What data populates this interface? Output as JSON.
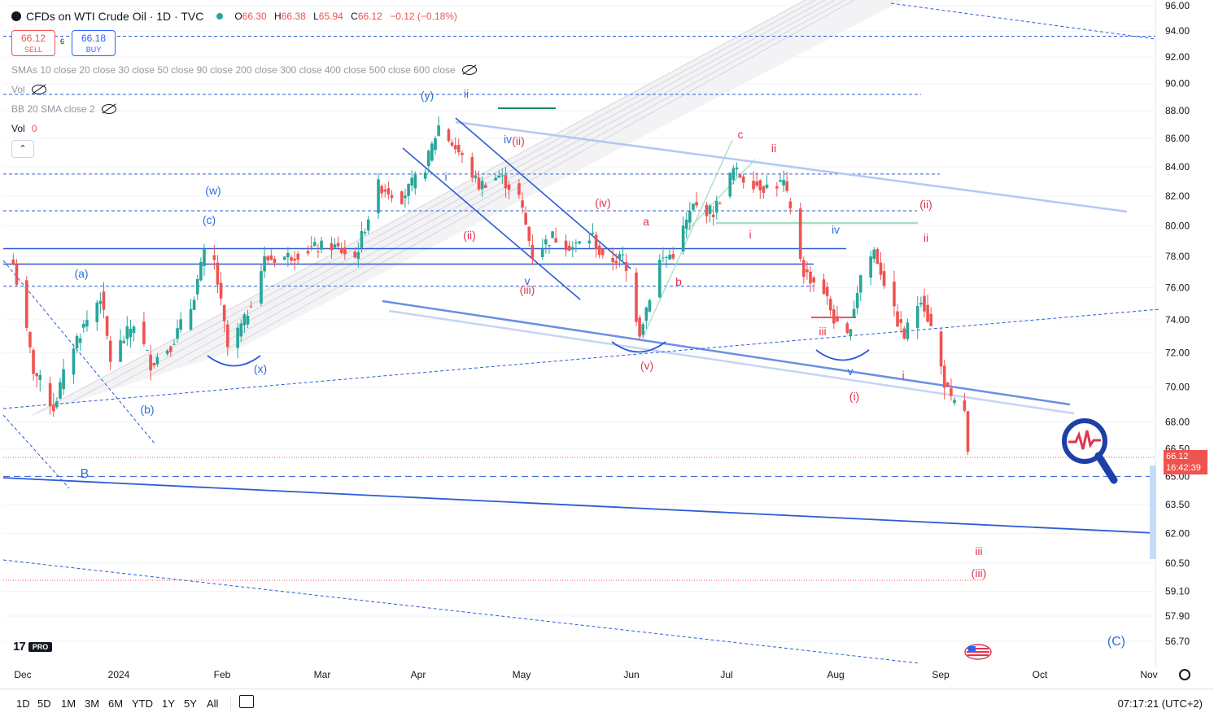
{
  "header": {
    "symbol_title": "CFDs on WTI Crude Oil · 1D · TVC",
    "ohlc": {
      "o_label": "O",
      "o": "66.30",
      "h_label": "H",
      "h": "66.38",
      "l_label": "L",
      "l": "65.94",
      "c_label": "C",
      "c": "66.12",
      "change": "−0.12 (−0.18%)"
    }
  },
  "trade": {
    "sell_price": "66.12",
    "sell_label": "SELL",
    "spread": "6",
    "buy_price": "66.18",
    "buy_label": "BUY"
  },
  "indicators": {
    "smas": "SMAs 10 close 20 close 30 close 50 close 90 close 200 close 300 close 400 close 500 close 600 close",
    "vol_hidden": "Vol",
    "bb": "BB 20 SMA close 2",
    "vol": "Vol",
    "vol_value": "0"
  },
  "logo": {
    "text": "17",
    "badge": "PRO"
  },
  "price_label": {
    "price": "66.12",
    "countdown": "16:42:39"
  },
  "toolbar": {
    "timeframes": [
      "1D",
      "5D",
      "1M",
      "3M",
      "6M",
      "YTD",
      "1Y",
      "5Y",
      "All"
    ],
    "clock": "07:17:21 (UTC+2)"
  },
  "colors": {
    "up": "#26a69a",
    "down": "#ef5350",
    "accent": "#2962ff",
    "wave_blue": "#2e6fd6",
    "wave_red": "#e0344f",
    "grid": "#f0f3fa"
  },
  "chart_data": {
    "type": "candlestick",
    "title": "CFDs on WTI Crude Oil · 1D · TVC",
    "y_ticks": [
      "96.00",
      "94.00",
      "92.00",
      "90.00",
      "88.00",
      "86.00",
      "84.00",
      "82.00",
      "80.00",
      "78.00",
      "76.00",
      "74.00",
      "72.00",
      "70.00",
      "68.00",
      "66.50",
      "65.00",
      "63.50",
      "62.00",
      "60.50",
      "59.10",
      "57.90",
      "56.70"
    ],
    "x_ticks": [
      "Dec",
      "2024",
      "Feb",
      "Mar",
      "Apr",
      "May",
      "Jun",
      "Jul",
      "Aug",
      "Sep",
      "Oct",
      "Nov"
    ],
    "ylim": [
      56.0,
      96.0
    ],
    "y_scale": "log",
    "x_range": [
      "2023-11-27",
      "2024-11-05"
    ],
    "last_price": 66.12,
    "series": [
      {
        "name": "WTI daily close",
        "points": [
          [
            "2023-11-30",
            77.5
          ],
          [
            "2023-12-06",
            71.0
          ],
          [
            "2023-12-12",
            68.8
          ],
          [
            "2023-12-18",
            72.5
          ],
          [
            "2023-12-26",
            75.5
          ],
          [
            "2023-12-29",
            71.6
          ],
          [
            "2024-01-05",
            73.8
          ],
          [
            "2024-01-10",
            71.4
          ],
          [
            "2024-01-16",
            72.5
          ],
          [
            "2024-01-22",
            74.8
          ],
          [
            "2024-01-26",
            78.1
          ],
          [
            "2024-01-29",
            77.6
          ],
          [
            "2024-02-02",
            72.3
          ],
          [
            "2024-02-07",
            73.9
          ],
          [
            "2024-02-13",
            77.8
          ],
          [
            "2024-02-20",
            78.0
          ],
          [
            "2024-02-27",
            78.5
          ],
          [
            "2024-03-04",
            78.7
          ],
          [
            "2024-03-11",
            77.9
          ],
          [
            "2024-03-18",
            82.7
          ],
          [
            "2024-03-25",
            81.9
          ],
          [
            "2024-04-01",
            84.0
          ],
          [
            "2024-04-05",
            86.9
          ],
          [
            "2024-04-11",
            85.0
          ],
          [
            "2024-04-17",
            82.7
          ],
          [
            "2024-04-23",
            83.4
          ],
          [
            "2024-04-29",
            81.9
          ],
          [
            "2024-05-03",
            78.1
          ],
          [
            "2024-05-09",
            79.3
          ],
          [
            "2024-05-15",
            78.6
          ],
          [
            "2024-05-21",
            79.3
          ],
          [
            "2024-05-24",
            77.7
          ],
          [
            "2024-05-30",
            77.9
          ],
          [
            "2024-06-04",
            73.3
          ],
          [
            "2024-06-10",
            77.7
          ],
          [
            "2024-06-14",
            78.2
          ],
          [
            "2024-06-20",
            81.3
          ],
          [
            "2024-06-26",
            80.9
          ],
          [
            "2024-07-02",
            83.8
          ],
          [
            "2024-07-05",
            83.2
          ],
          [
            "2024-07-11",
            82.6
          ],
          [
            "2024-07-17",
            82.9
          ],
          [
            "2024-07-23",
            77.0
          ],
          [
            "2024-07-29",
            75.8
          ],
          [
            "2024-08-02",
            73.5
          ],
          [
            "2024-08-05",
            72.9
          ],
          [
            "2024-08-09",
            76.8
          ],
          [
            "2024-08-13",
            78.4
          ],
          [
            "2024-08-19",
            74.4
          ],
          [
            "2024-08-22",
            73.0
          ],
          [
            "2024-08-27",
            75.5
          ],
          [
            "2024-08-30",
            73.5
          ],
          [
            "2024-09-03",
            70.3
          ],
          [
            "2024-09-05",
            69.1
          ],
          [
            "2024-09-09",
            68.7
          ],
          [
            "2024-09-10",
            66.12
          ]
        ]
      }
    ],
    "horizontal_levels": [
      93.6,
      89.2,
      83.5,
      81.0,
      78.5,
      77.5,
      76.1,
      65.0
    ],
    "wave_labels_blue": [
      "(y)",
      "ii",
      "iv",
      "i",
      "v",
      "(w)",
      "(c)",
      "(a)",
      "(x)",
      "(b)",
      "B",
      "(C)",
      "iv",
      "v"
    ],
    "wave_labels_red": [
      "(ii)",
      "(iv)",
      "(iii)",
      "(ii)",
      "a",
      "b",
      "c",
      "ii",
      "i",
      "(v)",
      "iii",
      "(i)",
      "i",
      "(ii)",
      "ii",
      "iii",
      "(iii)"
    ]
  }
}
